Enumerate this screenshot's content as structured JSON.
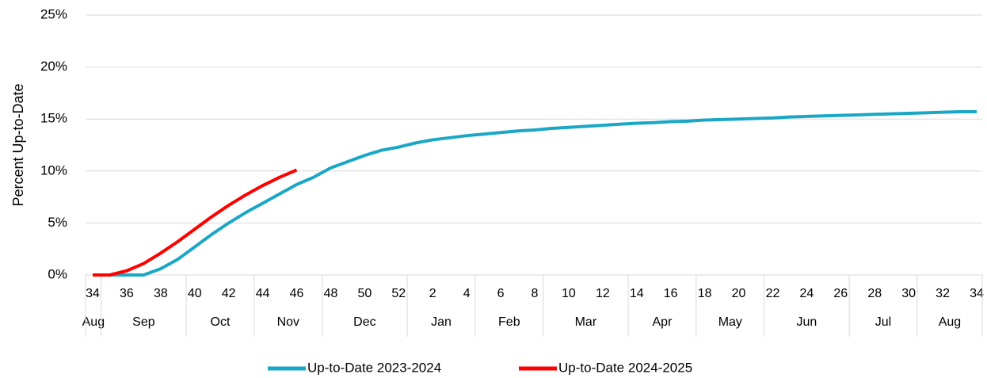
{
  "chart_data": {
    "type": "line",
    "y_axis_label": "Percent Up-to-Date",
    "categories": [
      "34",
      null,
      "36",
      null,
      "38",
      null,
      "40",
      null,
      "42",
      null,
      "44",
      null,
      "46",
      null,
      "48",
      null,
      "50",
      null,
      "52",
      null,
      "2",
      null,
      "4",
      null,
      "6",
      null,
      "8",
      null,
      "10",
      null,
      "12",
      null,
      "14",
      null,
      "16",
      null,
      "18",
      null,
      "20",
      null,
      "22",
      null,
      "24",
      null,
      "26",
      null,
      "28",
      null,
      "30",
      null,
      "32",
      null,
      "34"
    ],
    "x_groups": [
      {
        "label": "Aug",
        "size": 1
      },
      {
        "label": "Sep",
        "size": 5
      },
      {
        "label": "Oct",
        "size": 4
      },
      {
        "label": "Nov",
        "size": 4
      },
      {
        "label": "Dec",
        "size": 5
      },
      {
        "label": "Jan",
        "size": 4
      },
      {
        "label": "Feb",
        "size": 4
      },
      {
        "label": "Mar",
        "size": 5
      },
      {
        "label": "Apr",
        "size": 4
      },
      {
        "label": "May",
        "size": 4
      },
      {
        "label": "Jun",
        "size": 5
      },
      {
        "label": "Jul",
        "size": 4
      },
      {
        "label": "Aug",
        "size": 4
      }
    ],
    "series": [
      {
        "name": "Up-to-Date 2023-2024",
        "color": "#1aa7c6",
        "values": [
          0,
          0,
          0,
          0,
          0.6,
          1.5,
          2.7,
          3.9,
          5.0,
          6.0,
          6.9,
          7.8,
          8.7,
          9.4,
          10.3,
          10.9,
          11.5,
          12.0,
          12.3,
          12.7,
          13.0,
          13.2,
          13.4,
          13.55,
          13.7,
          13.85,
          13.95,
          14.1,
          14.2,
          14.3,
          14.4,
          14.5,
          14.6,
          14.65,
          14.75,
          14.8,
          14.9,
          14.95,
          15.0,
          15.05,
          15.1,
          15.2,
          15.25,
          15.3,
          15.35,
          15.4,
          15.45,
          15.5,
          15.55,
          15.6,
          15.65,
          15.7,
          15.7
        ]
      },
      {
        "name": "Up-to-Date 2024-2025",
        "color": "#ff0000",
        "values": [
          0,
          0,
          0.4,
          1.1,
          2.1,
          3.2,
          4.4,
          5.6,
          6.7,
          7.7,
          8.6,
          9.4,
          10.1,
          null,
          null,
          null,
          null,
          null,
          null,
          null,
          null,
          null,
          null,
          null,
          null,
          null,
          null,
          null,
          null,
          null,
          null,
          null,
          null,
          null,
          null,
          null,
          null,
          null,
          null,
          null,
          null,
          null,
          null,
          null,
          null,
          null,
          null,
          null,
          null,
          null,
          null,
          null,
          null
        ]
      }
    ],
    "ylim": [
      0,
      25
    ],
    "yticks": [
      {
        "value": 0,
        "label": "0%"
      },
      {
        "value": 5,
        "label": "5%"
      },
      {
        "value": 10,
        "label": "10%"
      },
      {
        "value": 15,
        "label": "15%"
      },
      {
        "value": 20,
        "label": "20%"
      },
      {
        "value": 25,
        "label": "25%"
      }
    ],
    "grid": true,
    "legend": "bottom"
  }
}
